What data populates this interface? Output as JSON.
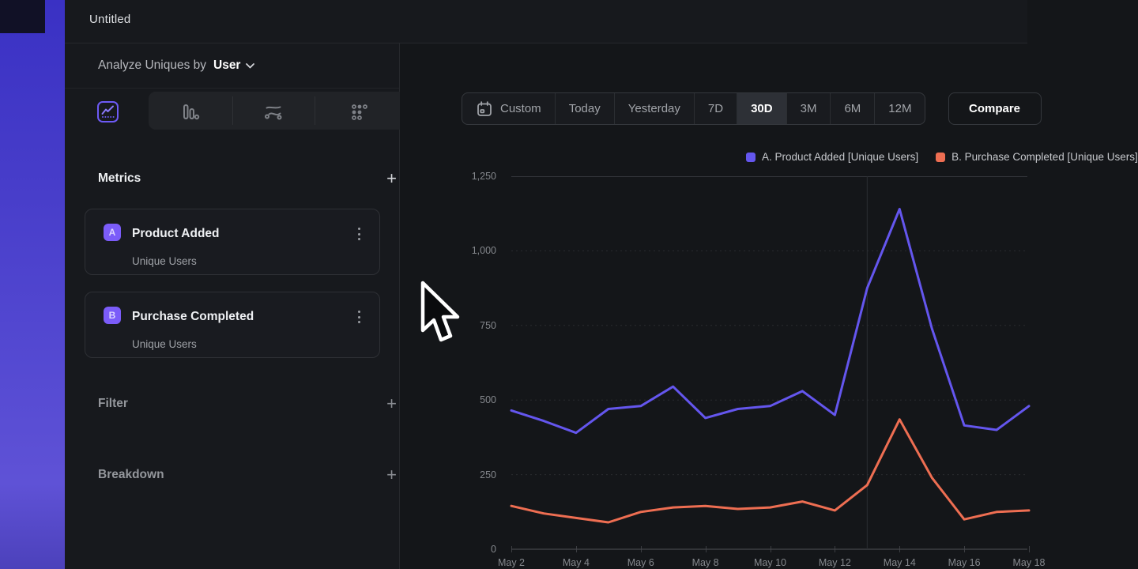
{
  "window": {
    "title": "Untitled"
  },
  "colors": {
    "accent_purple": "#6456ee",
    "accent_orange": "#ee6e52",
    "badge_purple": "#7b5cf9",
    "selected_range_bg": "#2d3036",
    "sidebar_bg": "#17191d",
    "panel_bg": "#141619"
  },
  "sidebar": {
    "analyze_prefix": "Analyze Uniques by",
    "analyze_value": "User",
    "chart_type_tabs": [
      {
        "name": "line-chart",
        "active": true
      },
      {
        "name": "bar-chart",
        "active": false
      },
      {
        "name": "flow",
        "active": false
      },
      {
        "name": "grid-dots",
        "active": false
      }
    ],
    "metrics": {
      "title": "Metrics",
      "add_label": "+",
      "items": [
        {
          "badge": "A",
          "name": "Product Added",
          "measure": "Unique Users"
        },
        {
          "badge": "B",
          "name": "Purchase Completed",
          "measure": "Unique Users"
        }
      ]
    },
    "filter": {
      "title": "Filter",
      "add_label": "+"
    },
    "breakdown": {
      "title": "Breakdown",
      "add_label": "+"
    }
  },
  "toolbar": {
    "ranges": [
      {
        "label": "Custom",
        "icon": "calendar-icon"
      },
      {
        "label": "Today"
      },
      {
        "label": "Yesterday"
      },
      {
        "label": "7D"
      },
      {
        "label": "30D"
      },
      {
        "label": "3M"
      },
      {
        "label": "6M"
      },
      {
        "label": "12M"
      }
    ],
    "selected_range": "30D",
    "compare_label": "Compare"
  },
  "chart_data": {
    "type": "line",
    "x": [
      "May 2",
      "May 3",
      "May 4",
      "May 5",
      "May 6",
      "May 7",
      "May 8",
      "May 9",
      "May 10",
      "May 11",
      "May 12",
      "May 13",
      "May 14",
      "May 15",
      "May 16",
      "May 17",
      "May 18"
    ],
    "x_tick_labels": [
      "May 2",
      "May 4",
      "May 6",
      "May 8",
      "May 10",
      "May 12",
      "May 14",
      "May 16",
      "May 18"
    ],
    "series": [
      {
        "name": "A. Product Added [Unique Users]",
        "color": "#6456ee",
        "values": [
          465,
          430,
          390,
          470,
          480,
          545,
          440,
          470,
          480,
          530,
          450,
          875,
          1140,
          740,
          415,
          400,
          480
        ]
      },
      {
        "name": "B. Purchase Completed [Unique Users]",
        "color": "#ee6e52",
        "values": [
          145,
          120,
          105,
          90,
          125,
          140,
          145,
          135,
          140,
          160,
          130,
          215,
          435,
          240,
          100,
          125,
          130
        ]
      }
    ],
    "ylim": [
      0,
      1250
    ],
    "ytick_values": [
      0,
      250,
      500,
      750,
      1000,
      1250
    ],
    "ytick_labels": [
      "0",
      "250",
      "500",
      "750",
      "1,000",
      "1,250"
    ],
    "grid": "horizontal-dotted",
    "vertical_gridline_at": "May 13",
    "legend_position": "top-right"
  }
}
